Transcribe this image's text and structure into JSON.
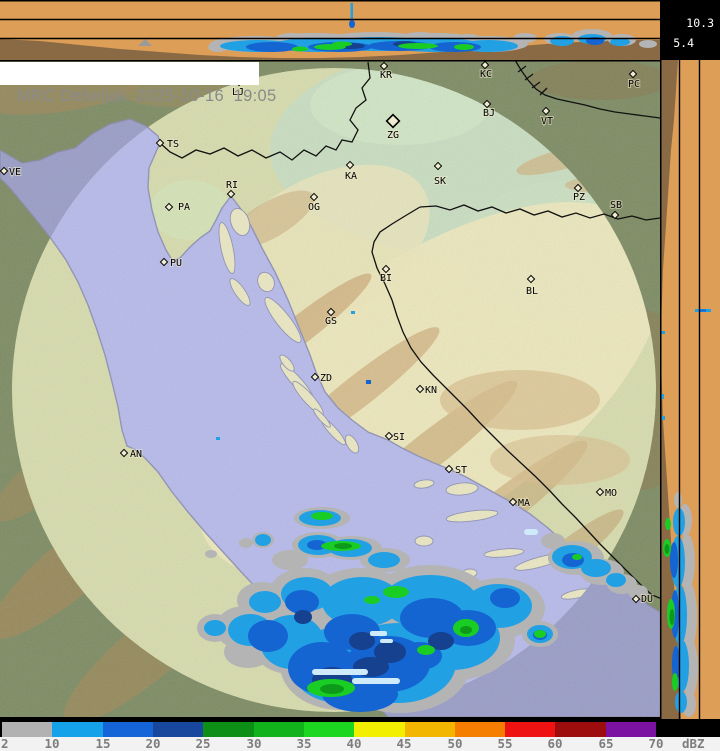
{
  "header": {
    "title": "MRC Debeljak  2025-10-16  19:05"
  },
  "cross_section": {
    "upper_height_km": "10.3",
    "lower_height_km": "5.4"
  },
  "scale": {
    "unit": "dBZ",
    "ticks": [
      "2",
      "10",
      "15",
      "20",
      "25",
      "30",
      "35",
      "40",
      "45",
      "50",
      "55",
      "60",
      "65",
      "70"
    ],
    "colors": [
      "#b2b2b2",
      "#16a2e8",
      "#1565d8",
      "#17489d",
      "#0d8f17",
      "#12b21c",
      "#1dd621",
      "#f2ef00",
      "#f2b600",
      "#f57e00",
      "#ef1212",
      "#9e0d0d",
      "#7c12a2"
    ]
  },
  "map": {
    "cities": [
      {
        "code": "VE",
        "m": [
          4,
          171
        ],
        "l": [
          15,
          175
        ]
      },
      {
        "code": "TS",
        "m": [
          160,
          143
        ],
        "l": [
          173,
          147
        ]
      },
      {
        "code": "LJ",
        "m": [
          239,
          82
        ],
        "l": [
          238,
          95
        ]
      },
      {
        "code": "KR",
        "m": [
          384,
          66
        ],
        "l": [
          386,
          78
        ]
      },
      {
        "code": "ZG",
        "m": [
          393,
          121
        ],
        "l": [
          393,
          138
        ],
        "big": true
      },
      {
        "code": "KA",
        "m": [
          350,
          165
        ],
        "l": [
          351,
          179
        ]
      },
      {
        "code": "SK",
        "m": [
          438,
          166
        ],
        "l": [
          440,
          184
        ]
      },
      {
        "code": "RI",
        "m": [
          231,
          194
        ],
        "l": [
          232,
          188
        ]
      },
      {
        "code": "PA",
        "m": [
          169,
          207
        ],
        "l": [
          184,
          210
        ]
      },
      {
        "code": "PU",
        "m": [
          164,
          262
        ],
        "l": [
          176,
          266
        ]
      },
      {
        "code": "OG",
        "m": [
          314,
          197
        ],
        "l": [
          314,
          210
        ]
      },
      {
        "code": "KC",
        "m": [
          485,
          65
        ],
        "l": [
          486,
          77
        ]
      },
      {
        "code": "PC",
        "m": [
          633,
          74
        ],
        "l": [
          634,
          87
        ]
      },
      {
        "code": "BJ",
        "m": [
          487,
          104
        ],
        "l": [
          489,
          116
        ]
      },
      {
        "code": "VT",
        "m": [
          546,
          111
        ],
        "l": [
          547,
          124
        ]
      },
      {
        "code": "PZ",
        "m": [
          578,
          188
        ],
        "l": [
          579,
          200
        ]
      },
      {
        "code": "SB",
        "m": [
          615,
          215
        ],
        "l": [
          616,
          208
        ]
      },
      {
        "code": "BI",
        "m": [
          386,
          269
        ],
        "l": [
          386,
          281
        ]
      },
      {
        "code": "BL",
        "m": [
          531,
          279
        ],
        "l": [
          532,
          294
        ]
      },
      {
        "code": "GS",
        "m": [
          331,
          312
        ],
        "l": [
          331,
          324
        ]
      },
      {
        "code": "ZD",
        "m": [
          315,
          377
        ],
        "l": [
          326,
          381
        ]
      },
      {
        "code": "KN",
        "m": [
          420,
          389
        ],
        "l": [
          431,
          393
        ]
      },
      {
        "code": "SI",
        "m": [
          389,
          436
        ],
        "l": [
          399,
          440
        ]
      },
      {
        "code": "ST",
        "m": [
          449,
          469
        ],
        "l": [
          461,
          473
        ]
      },
      {
        "code": "MA",
        "m": [
          513,
          502
        ],
        "l": [
          524,
          506
        ]
      },
      {
        "code": "MO",
        "m": [
          600,
          492
        ],
        "l": [
          611,
          496
        ]
      },
      {
        "code": "DU",
        "m": [
          636,
          599
        ],
        "l": [
          647,
          602
        ]
      },
      {
        "code": "AN",
        "m": [
          124,
          453
        ],
        "l": [
          136,
          457
        ]
      }
    ]
  },
  "colors": {
    "panel_bg": "#dd9e57",
    "terrain_profile": "#8a6a44",
    "sea": "#b7bae8",
    "outside_sea": "#9b9ec6",
    "land": "#d6daad",
    "outside_land": "#7f8d66",
    "coast_outline": "#9093b4",
    "border": "#111111",
    "echo_gray": "#b4b4b4",
    "echo_light_blue": "#22a0e4",
    "echo_blue": "#1464d2",
    "echo_navy": "#15418f",
    "echo_green": "#19cd25",
    "echo_dark_green": "#0d9a1a",
    "echo_pale": "#cfeaf8",
    "scale_label": "#7d7d7d",
    "title_text": "#8a8a8a"
  }
}
